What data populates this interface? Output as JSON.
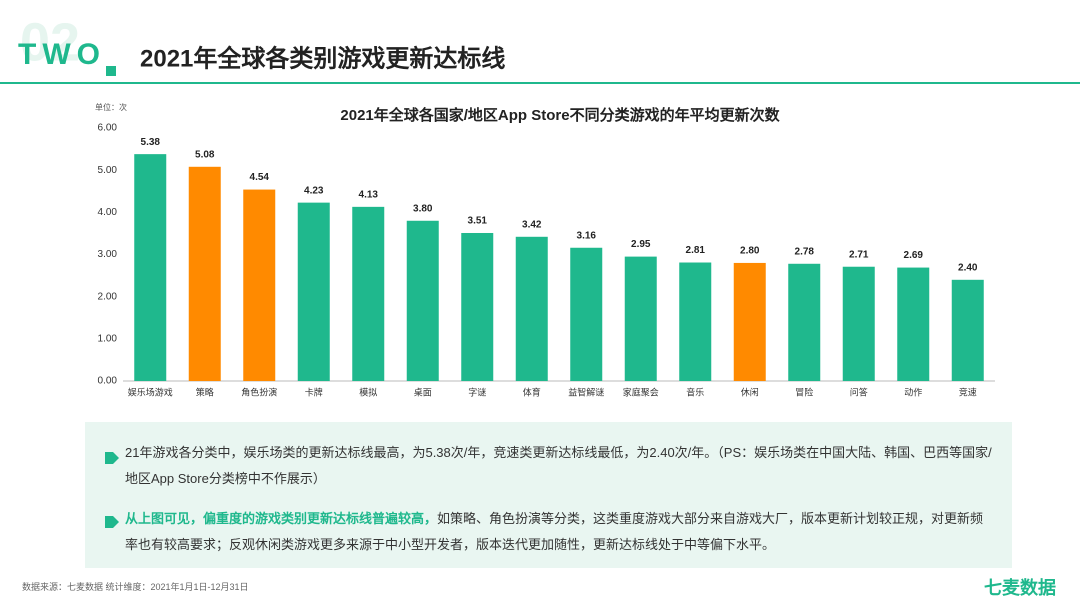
{
  "header": {
    "section": "TWO",
    "number": "02",
    "title": "2021年全球各类别游戏更新达标线"
  },
  "chart_data": {
    "type": "bar",
    "title": "2021年全球各国家/地区App Store不同分类游戏的年平均更新次数",
    "unit": "单位：次",
    "categories": [
      "娱乐场游戏",
      "策略",
      "角色扮演",
      "卡牌",
      "模拟",
      "桌面",
      "字谜",
      "体育",
      "益智解谜",
      "家庭聚会",
      "音乐",
      "休闲",
      "冒险",
      "问答",
      "动作",
      "竞速"
    ],
    "values": [
      5.38,
      5.08,
      4.54,
      4.23,
      4.13,
      3.8,
      3.51,
      3.42,
      3.16,
      2.95,
      2.81,
      2.8,
      2.78,
      2.71,
      2.69,
      2.4
    ],
    "value_labels": [
      "5.38",
      "5.08",
      "4.54",
      "4.23",
      "4.13",
      "3.80",
      "3.51",
      "3.42",
      "3.16",
      "2.95",
      "2.81",
      "2.80",
      "2.78",
      "2.71",
      "2.69",
      "2.40"
    ],
    "colors": [
      "#1fb88d",
      "#ff8a00",
      "#ff8a00",
      "#1fb88d",
      "#1fb88d",
      "#1fb88d",
      "#1fb88d",
      "#1fb88d",
      "#1fb88d",
      "#1fb88d",
      "#1fb88d",
      "#ff8a00",
      "#1fb88d",
      "#1fb88d",
      "#1fb88d",
      "#1fb88d"
    ],
    "ylim": [
      0,
      6
    ],
    "yticks": [
      {
        "value": 0,
        "label": "0.00"
      },
      {
        "value": 1,
        "label": "1.00"
      },
      {
        "value": 2,
        "label": "2.00"
      },
      {
        "value": 3,
        "label": "3.00"
      },
      {
        "value": 4,
        "label": "4.00"
      },
      {
        "value": 5,
        "label": "5.00"
      },
      {
        "value": 6,
        "label": "6.00"
      }
    ],
    "grid": false
  },
  "notes": [
    {
      "text": "21年游戏各分类中，娱乐场类的更新达标线最高，为5.38次/年，竞速类更新达标线最低，为2.40次/年。（PS：娱乐场类在中国大陆、韩国、巴西等国家/地区App Store分类榜中不作展示）"
    },
    {
      "lead": "从上图可见，偏重度的游戏类别更新达标线普遍较高，",
      "text": "如策略、角色扮演等分类，这类重度游戏大部分来自游戏大厂，版本更新计划较正规，对更新频率也有较高要求；反观休闲类游戏更多来源于中小型开发者，版本迭代更加随性，更新达标线处于中等偏下水平。"
    }
  ],
  "footer": {
    "source": "数据来源：七麦数据  统计维度：2021年1月1日-12月31日",
    "brand": "七麦数据"
  }
}
